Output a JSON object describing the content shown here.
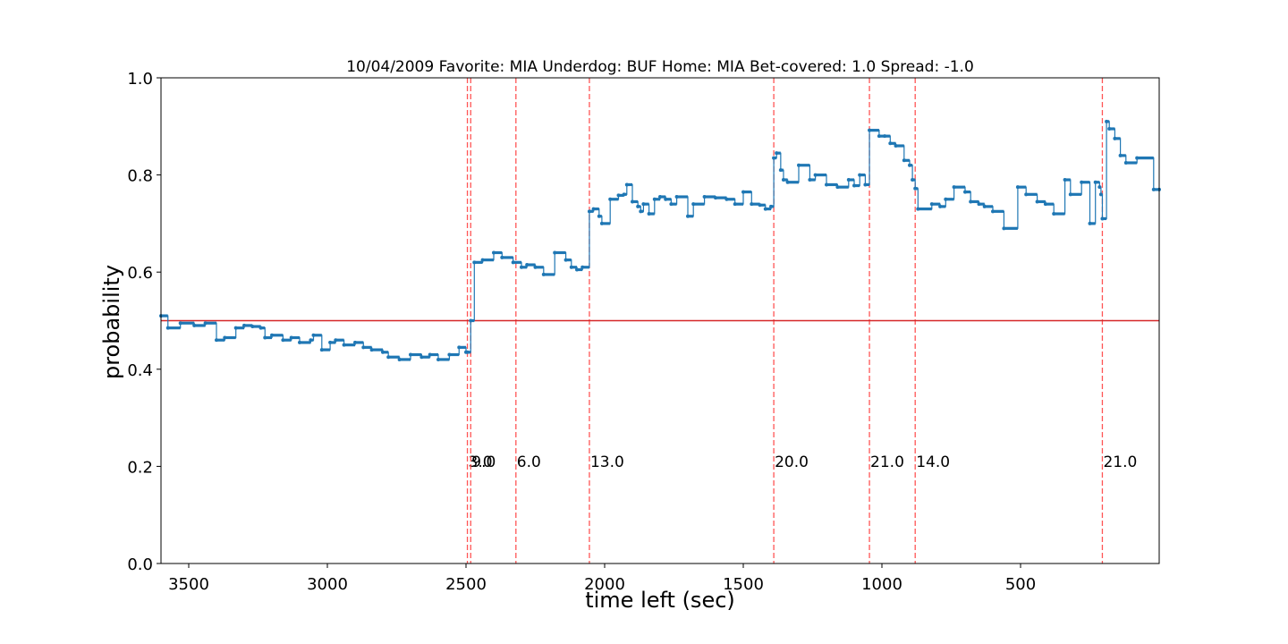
{
  "chart_data": {
    "type": "line",
    "title": "10/04/2009 Favorite: MIA Underdog: BUF Home: MIA Bet-covered: 1.0 Spread: -1.0",
    "xlabel": "time left (sec)",
    "ylabel": "probability",
    "xlim": [
      3600,
      0
    ],
    "ylim": [
      0.0,
      1.0
    ],
    "x_ticks": [
      3500,
      3000,
      2500,
      2000,
      1500,
      1000,
      500
    ],
    "y_ticks": [
      0.0,
      0.2,
      0.4,
      0.6,
      0.8,
      1.0
    ],
    "x_tick_labels": [
      "3500",
      "3000",
      "2500",
      "2000",
      "1500",
      "1000",
      "500"
    ],
    "y_tick_labels": [
      "0.0",
      "0.2",
      "0.4",
      "0.6",
      "0.8",
      "1.0"
    ],
    "grid": false,
    "reference_line": {
      "y": 0.5,
      "color": "#d62728"
    },
    "series_color": "#1f77b4",
    "event_line_color": "#ff5555",
    "events": [
      {
        "x": 2495,
        "label": "3.0"
      },
      {
        "x": 2483,
        "label": "9.0"
      },
      {
        "x": 2320,
        "label": "6.0"
      },
      {
        "x": 2055,
        "label": "13.0"
      },
      {
        "x": 1390,
        "label": "20.0"
      },
      {
        "x": 1045,
        "label": "21.0"
      },
      {
        "x": 880,
        "label": "14.0"
      },
      {
        "x": 205,
        "label": "21.0"
      }
    ],
    "series": [
      {
        "x": [
          3600,
          3575,
          3530,
          3480,
          3440,
          3400,
          3370,
          3330,
          3300,
          3270,
          3240,
          3225,
          3200,
          3160,
          3130,
          3100,
          3060,
          3050,
          3020,
          2990,
          2970,
          2940,
          2900,
          2870,
          2840,
          2800,
          2780,
          2740,
          2700,
          2660,
          2630,
          2600,
          2560,
          2525,
          2500,
          2495,
          2483,
          2470,
          2440,
          2400,
          2370,
          2330,
          2300,
          2280,
          2250,
          2220,
          2180,
          2140,
          2120,
          2100,
          2080,
          2055,
          2040,
          2020,
          2010,
          1980,
          1950,
          1930,
          1920,
          1900,
          1880,
          1870,
          1860,
          1840,
          1820,
          1800,
          1780,
          1760,
          1740,
          1700,
          1680,
          1640,
          1600,
          1560,
          1530,
          1500,
          1470,
          1440,
          1420,
          1400,
          1390,
          1380,
          1365,
          1355,
          1340,
          1300,
          1260,
          1240,
          1200,
          1160,
          1120,
          1100,
          1080,
          1060,
          1045,
          1010,
          990,
          970,
          950,
          920,
          900,
          890,
          880,
          870,
          820,
          790,
          770,
          740,
          700,
          680,
          650,
          630,
          600,
          560,
          510,
          480,
          440,
          410,
          380,
          340,
          320,
          280,
          250,
          230,
          215,
          210,
          205,
          190,
          180,
          160,
          140,
          120,
          80,
          20,
          0
        ],
        "y": [
          0.51,
          0.485,
          0.495,
          0.49,
          0.495,
          0.46,
          0.465,
          0.485,
          0.49,
          0.488,
          0.485,
          0.465,
          0.47,
          0.46,
          0.465,
          0.455,
          0.46,
          0.47,
          0.44,
          0.455,
          0.46,
          0.45,
          0.455,
          0.445,
          0.44,
          0.435,
          0.425,
          0.42,
          0.43,
          0.425,
          0.43,
          0.42,
          0.43,
          0.445,
          0.435,
          0.435,
          0.5,
          0.62,
          0.625,
          0.64,
          0.63,
          0.62,
          0.61,
          0.615,
          0.61,
          0.595,
          0.64,
          0.625,
          0.61,
          0.605,
          0.61,
          0.725,
          0.73,
          0.715,
          0.7,
          0.75,
          0.758,
          0.76,
          0.78,
          0.745,
          0.735,
          0.725,
          0.74,
          0.72,
          0.75,
          0.755,
          0.75,
          0.74,
          0.755,
          0.715,
          0.74,
          0.755,
          0.753,
          0.75,
          0.74,
          0.765,
          0.74,
          0.738,
          0.73,
          0.735,
          0.835,
          0.845,
          0.81,
          0.79,
          0.785,
          0.82,
          0.79,
          0.8,
          0.78,
          0.775,
          0.79,
          0.778,
          0.8,
          0.78,
          0.892,
          0.88,
          0.88,
          0.865,
          0.86,
          0.83,
          0.82,
          0.79,
          0.772,
          0.73,
          0.74,
          0.735,
          0.75,
          0.775,
          0.765,
          0.745,
          0.74,
          0.735,
          0.725,
          0.69,
          0.775,
          0.76,
          0.745,
          0.74,
          0.72,
          0.79,
          0.76,
          0.785,
          0.7,
          0.785,
          0.775,
          0.76,
          0.71,
          0.91,
          0.895,
          0.875,
          0.84,
          0.825,
          0.835,
          0.77,
          0.77
        ]
      }
    ]
  }
}
